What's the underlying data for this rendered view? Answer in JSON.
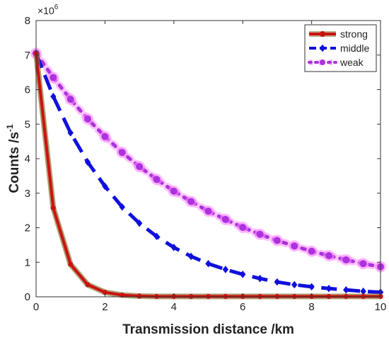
{
  "chart_data": {
    "type": "line",
    "title": "",
    "xlabel": "Transmission distance /km",
    "ylabel_main": "Counts /s",
    "ylabel_sup": "-1",
    "y_exponent_base": "×10",
    "y_exponent_power": "6",
    "xlim": [
      0,
      10
    ],
    "ylim": [
      0,
      8
    ],
    "x_ticks": [
      "0",
      "2",
      "4",
      "6",
      "8",
      "10"
    ],
    "y_ticks": [
      "0",
      "1",
      "2",
      "3",
      "4",
      "5",
      "6",
      "7",
      "8"
    ],
    "x_tick_values": [
      0,
      2,
      4,
      6,
      8,
      10
    ],
    "y_tick_values": [
      0,
      1,
      2,
      3,
      4,
      5,
      6,
      7,
      8
    ],
    "grid": false,
    "legend_position": "top-right",
    "x": [
      0,
      0.5,
      1,
      1.5,
      2,
      2.5,
      3,
      3.5,
      4,
      4.5,
      5,
      5.5,
      6,
      6.5,
      7,
      7.5,
      8,
      8.5,
      9,
      9.5,
      10
    ],
    "series": [
      {
        "name": "strong",
        "color": "#cc1111",
        "glow": "#8a7a3a",
        "line_style": "solid",
        "marker": "circle",
        "values": [
          7.05,
          2.57,
          0.94,
          0.35,
          0.13,
          0.05,
          0.02,
          0.01,
          0.01,
          0.01,
          0.01,
          0.01,
          0.01,
          0.01,
          0.01,
          0.01,
          0.01,
          0.01,
          0.01,
          0.01,
          0.01
        ]
      },
      {
        "name": "middle",
        "color": "#1010dd",
        "glow": null,
        "line_style": "dashed",
        "marker": "diamond",
        "values": [
          7.05,
          5.8,
          4.75,
          3.9,
          3.2,
          2.6,
          2.13,
          1.75,
          1.43,
          1.17,
          0.96,
          0.79,
          0.65,
          0.53,
          0.43,
          0.35,
          0.29,
          0.24,
          0.2,
          0.16,
          0.13
        ]
      },
      {
        "name": "weak",
        "color": "#aa33dd",
        "glow": "#ff88ff",
        "line_style": "dotted",
        "marker": "circle",
        "values": [
          7.05,
          6.35,
          5.72,
          5.15,
          4.64,
          4.18,
          3.77,
          3.4,
          3.06,
          2.76,
          2.48,
          2.24,
          2.01,
          1.81,
          1.63,
          1.47,
          1.32,
          1.19,
          1.07,
          0.96,
          0.87
        ]
      }
    ]
  }
}
